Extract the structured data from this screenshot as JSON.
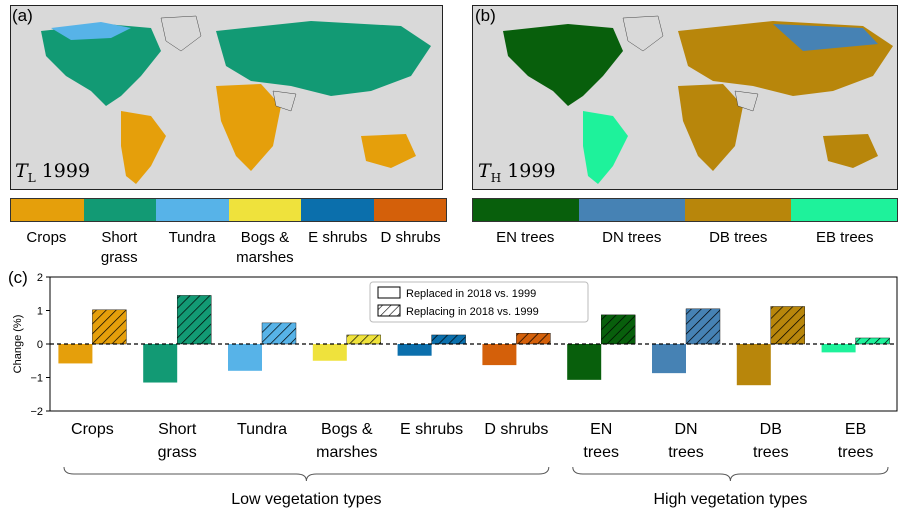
{
  "panels": {
    "a": {
      "tag": "(a)",
      "var": "T",
      "sub": "L",
      "year": "1999"
    },
    "b": {
      "tag": "(b)",
      "var": "T",
      "sub": "H",
      "year": "1999"
    },
    "c": {
      "tag": "(c)"
    }
  },
  "colorbars": {
    "low": [
      {
        "label": "Crops",
        "color": "#e59f0b"
      },
      {
        "label": "Short\ngrass",
        "color": "#129a74"
      },
      {
        "label": "Tundra",
        "color": "#57b3e8"
      },
      {
        "label": "Bogs &\nmarshes",
        "color": "#efe23c"
      },
      {
        "label": "E shrubs",
        "color": "#0b6fac"
      },
      {
        "label": "D shrubs",
        "color": "#d4600a"
      }
    ],
    "high": [
      {
        "label": "EN trees",
        "color": "#085f0c"
      },
      {
        "label": "DN trees",
        "color": "#4682b4"
      },
      {
        "label": "DB trees",
        "color": "#b8860b"
      },
      {
        "label": "EB trees",
        "color": "#1ef29b"
      }
    ]
  },
  "chart_data": {
    "type": "bar",
    "ylabel": "Change (%)",
    "ylim": [
      -2,
      2
    ],
    "yticks": [
      -2,
      -1,
      0,
      1,
      2
    ],
    "reference_line": {
      "y": 0,
      "style": "dashed"
    },
    "categories": [
      "Crops",
      "Short\ngrass",
      "Tundra",
      "Bogs &\nmarshes",
      "E shrubs",
      "D shrubs",
      "EN\ntrees",
      "DN\ntrees",
      "DB\ntrees",
      "EB\ntrees"
    ],
    "colors": [
      "#e59f0b",
      "#129a74",
      "#57b3e8",
      "#efe23c",
      "#0b6fac",
      "#d4600a",
      "#085f0c",
      "#4682b4",
      "#b8860b",
      "#1ef29b"
    ],
    "series": [
      {
        "name": "Replaced in 2018 vs. 1999",
        "pattern": "solid",
        "values": [
          -0.58,
          -1.15,
          -0.8,
          -0.5,
          -0.35,
          -0.63,
          -1.07,
          -0.87,
          -1.23,
          -0.25
        ]
      },
      {
        "name": "Replacing in 2018 vs. 1999",
        "pattern": "hatched",
        "values": [
          1.02,
          1.45,
          0.63,
          0.27,
          0.27,
          0.32,
          0.87,
          1.05,
          1.12,
          0.18
        ]
      }
    ],
    "legend_position": "top-center",
    "groups": [
      {
        "label": "Low vegetation types",
        "from": 0,
        "to": 5
      },
      {
        "label": "High vegetation types",
        "from": 6,
        "to": 9
      }
    ]
  }
}
